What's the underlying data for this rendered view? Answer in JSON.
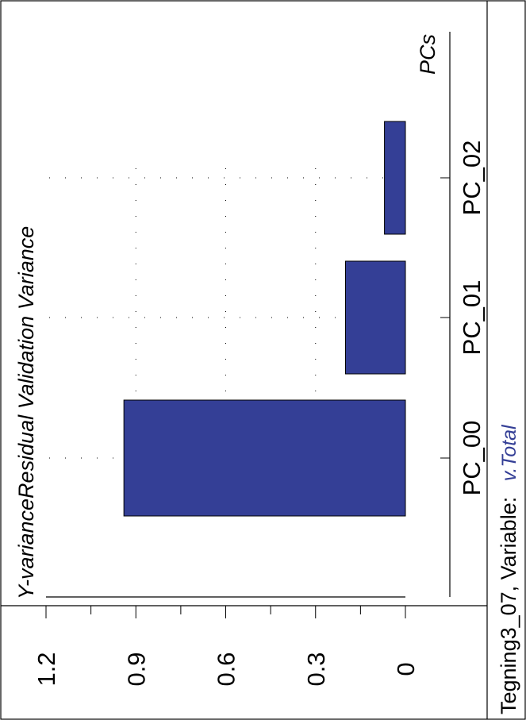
{
  "chart_data": {
    "type": "bar",
    "title": "Y-varianceResidual Validation Variance",
    "xlabel": "PCs",
    "ylabel": "",
    "categories": [
      "PC_00",
      "PC_01",
      "PC_02"
    ],
    "values": [
      0.94,
      0.2,
      0.07
    ],
    "ylim": [
      0,
      1.2
    ],
    "yticks": [
      "0",
      "0.3",
      "0.6",
      "0.9",
      "1.2"
    ],
    "grid": true,
    "bar_color": "#343f96",
    "orientation": "rotated 90 degrees counter-clockwise"
  },
  "footer": {
    "prefix": "Tegning3_07, Variable:",
    "variable": "v.Total",
    "variable_color": "#343f96"
  }
}
